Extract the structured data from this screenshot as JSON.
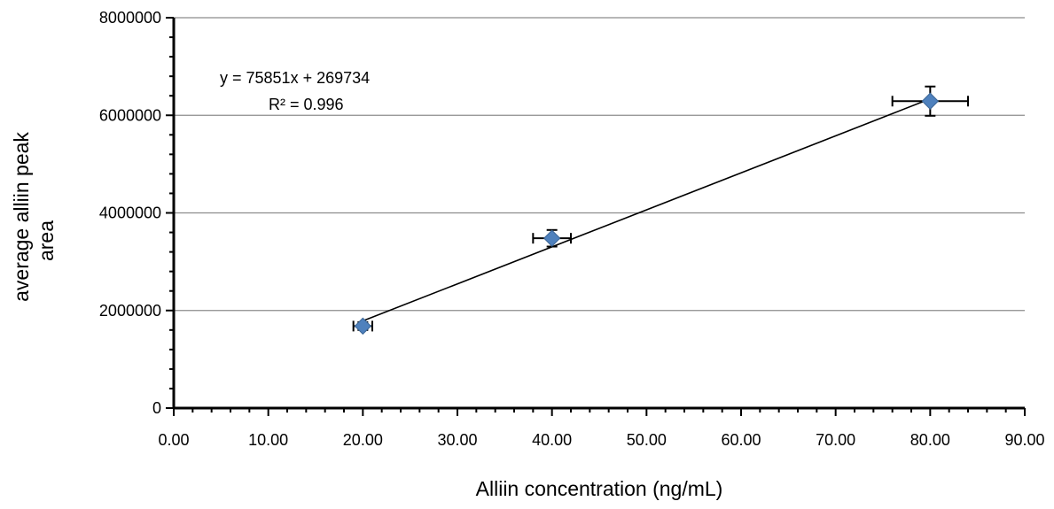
{
  "chart_data": {
    "type": "scatter",
    "title": "",
    "xlabel": "Alliin concentration (ng/mL)",
    "ylabel_lines": [
      "average alliin peak",
      "area"
    ],
    "xlim": [
      0,
      90
    ],
    "ylim": [
      0,
      8000000
    ],
    "x_ticks": [
      0,
      10,
      20,
      30,
      40,
      50,
      60,
      70,
      80,
      90
    ],
    "x_tick_labels": [
      "0.00",
      "10.00",
      "20.00",
      "30.00",
      "40.00",
      "50.00",
      "60.00",
      "70.00",
      "80.00",
      "90.00"
    ],
    "y_ticks": [
      0,
      2000000,
      4000000,
      6000000,
      8000000
    ],
    "y_tick_labels": [
      "0",
      "2000000",
      "4000000",
      "6000000",
      "8000000"
    ],
    "x_minor_step": 2,
    "y_minor_step": 400000,
    "grid": "horizontal-major",
    "legend": "none",
    "series": [
      {
        "marker": "diamond",
        "color": "#4f81bd",
        "points": [
          {
            "x": 20,
            "y": 1680000,
            "x_err": 1.0,
            "y_err": 80000
          },
          {
            "x": 40,
            "y": 3480000,
            "x_err": 2.0,
            "y_err": 170000
          },
          {
            "x": 80,
            "y": 6290000,
            "x_err": 4.0,
            "y_err": 300000
          }
        ]
      }
    ],
    "trendline": {
      "type": "linear",
      "slope": 75851,
      "intercept": 269734,
      "x_range": [
        20,
        80
      ],
      "color": "#000000",
      "equation_text": "y = 75851x + 269734",
      "r2_text": "R² = 0.996"
    },
    "colors": {
      "gridline": "#8c8c8c",
      "axis": "#000000",
      "marker_edge": "#3a6596"
    }
  }
}
